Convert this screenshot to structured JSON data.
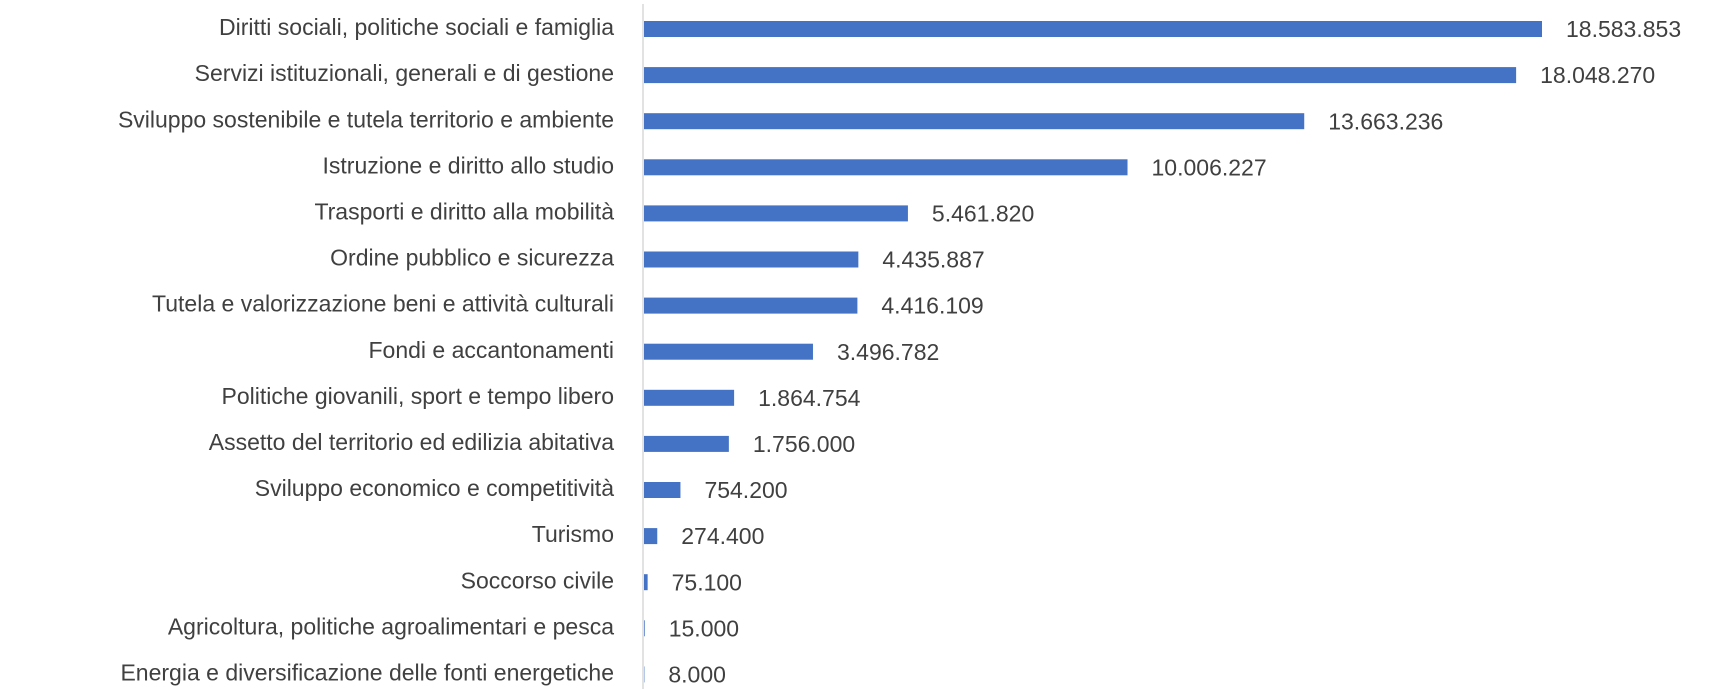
{
  "chart_data": {
    "type": "barh",
    "color": "#4472c4",
    "categories": [
      "Diritti sociali, politiche sociali e famiglia",
      "Servizi istituzionali, generali e di gestione",
      "Sviluppo sostenibile e tutela territorio e ambiente",
      "Istruzione e diritto allo studio",
      "Trasporti e diritto alla mobilità",
      "Ordine pubblico e sicurezza",
      "Tutela e valorizzazione beni e attività culturali",
      "Fondi e accantonamenti",
      "Politiche giovanili, sport e tempo libero",
      "Assetto del territorio ed edilizia abitativa",
      "Sviluppo economico e competitività",
      "Turismo",
      "Soccorso civile",
      "Agricoltura, politiche agroalimentari e pesca",
      "Energia e diversificazione delle fonti energetiche"
    ],
    "values": [
      18583853,
      18048270,
      13663236,
      10006227,
      5461820,
      4435887,
      4416109,
      3496782,
      1864754,
      1756000,
      754200,
      274400,
      75100,
      15000,
      8000
    ],
    "value_labels": [
      "18.583.853",
      "18.048.270",
      "13.663.236",
      "10.006.227",
      "5.461.820",
      "4.435.887",
      "4.416.109",
      "3.496.782",
      "1.864.754",
      "1.756.000",
      "754.200",
      "274.400",
      "75.100",
      "15.000",
      "8.000"
    ]
  }
}
